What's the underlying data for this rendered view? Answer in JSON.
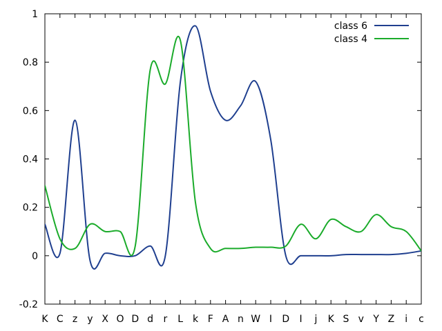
{
  "chart_data": {
    "type": "line",
    "title": "",
    "xlabel": "",
    "ylabel": "",
    "categories": [
      "K",
      "C",
      "z",
      "y",
      "X",
      "O",
      "D",
      "d",
      "r",
      "L",
      "k",
      "F",
      "A",
      "n",
      "W",
      "I",
      "D",
      "I",
      "j",
      "K",
      "S",
      "v",
      "Y",
      "Z",
      "i",
      "c"
    ],
    "ylim": [
      -0.2,
      1.0
    ],
    "yticks": [
      -0.2,
      0,
      0.2,
      0.4,
      0.6,
      0.8,
      1
    ],
    "ytick_labels": [
      "-0.2",
      "0",
      "0.2",
      "0.4",
      "0.6",
      "0.8",
      "1"
    ],
    "grid": false,
    "legend": "top-right",
    "series": [
      {
        "name": "class 6",
        "color": "#1f3f8f",
        "values": [
          0.13,
          0.01,
          0.56,
          -0.02,
          0.01,
          0.0,
          0.0,
          0.04,
          0.0,
          0.72,
          0.95,
          0.68,
          0.56,
          0.62,
          0.72,
          0.48,
          0.0,
          0.0,
          0.0,
          0.0,
          0.005,
          0.005,
          0.005,
          0.005,
          0.01,
          0.02
        ]
      },
      {
        "name": "class 4",
        "color": "#1aab2a",
        "values": [
          0.29,
          0.07,
          0.03,
          0.13,
          0.1,
          0.1,
          0.04,
          0.77,
          0.71,
          0.89,
          0.22,
          0.03,
          0.03,
          0.03,
          0.035,
          0.035,
          0.04,
          0.13,
          0.07,
          0.15,
          0.12,
          0.1,
          0.17,
          0.12,
          0.1,
          0.02
        ]
      }
    ]
  }
}
